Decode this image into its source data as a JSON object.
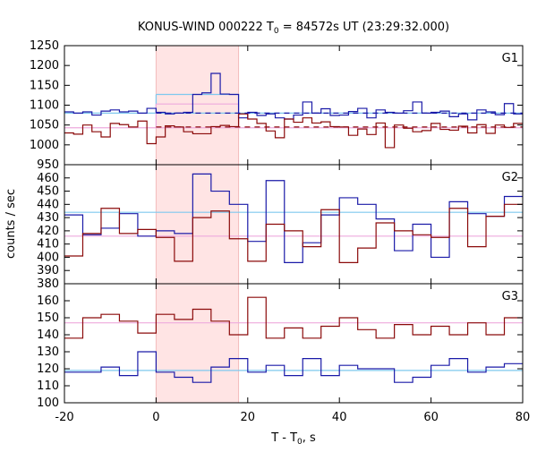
{
  "title": {
    "prefix": "KONUS-WIND 000222 T",
    "subscript": "0",
    "suffix": " = 84572s UT (23:29:32.000)"
  },
  "axes": {
    "ylabel": "counts / sec",
    "xlabel_prefix": "T - T",
    "xlabel_subscript": "0",
    "xlabel_suffix": ", s"
  },
  "colors": {
    "blue": "#1a1aa8",
    "red": "#8b0a0a",
    "lightblue": "#7ec8ee",
    "pink": "#eeaadd",
    "shade": "#ffe4e4",
    "dash_blue": "#1a1aa8",
    "dash_red": "#8b0a0a",
    "box_blue": "#7ec8ee",
    "box_pink": "#eeaadd"
  },
  "chart_data": [
    {
      "type": "line",
      "panel": "G1",
      "xlim": [
        -20,
        80
      ],
      "ylim": [
        950,
        1250
      ],
      "xticks": [
        -20,
        0,
        20,
        40,
        60,
        80
      ],
      "yticks": [
        1000,
        1050,
        1100,
        1150,
        1200,
        1250
      ],
      "ytick_labels": [
        "1000",
        "1050",
        "1100",
        "1150",
        "1200",
        "1250"
      ],
      "shaded_interval": [
        0,
        18
      ],
      "bin_edges_start": -20,
      "bin_width": 2,
      "series": [
        {
          "color_key": "blue",
          "values": [
            1083,
            1080,
            1083,
            1075,
            1085,
            1088,
            1083,
            1085,
            1080,
            1092,
            1082,
            1078,
            1080,
            1082,
            1127,
            1131,
            1180,
            1128,
            1127,
            1068,
            1082,
            1074,
            1078,
            1068,
            1065,
            1075,
            1108,
            1080,
            1091,
            1074,
            1075,
            1084,
            1092,
            1068,
            1088,
            1082,
            1080,
            1086,
            1108,
            1080,
            1082,
            1085,
            1071,
            1078,
            1063,
            1088,
            1083,
            1076,
            1104,
            1078
          ]
        },
        {
          "color_key": "red",
          "values": [
            1030,
            1027,
            1050,
            1033,
            1020,
            1054,
            1051,
            1045,
            1060,
            1003,
            1020,
            1048,
            1045,
            1033,
            1028,
            1028,
            1046,
            1049,
            1046,
            1078,
            1065,
            1054,
            1035,
            1018,
            1065,
            1057,
            1068,
            1055,
            1058,
            1046,
            1045,
            1024,
            1040,
            1026,
            1055,
            993,
            1050,
            1042,
            1033,
            1036,
            1054,
            1039,
            1037,
            1047,
            1030,
            1051,
            1029,
            1050,
            1044,
            1054
          ]
        }
      ],
      "background_levels": [
        {
          "color_key": "lightblue",
          "value": 1080,
          "range": [
            -20,
            80
          ]
        },
        {
          "color_key": "pink",
          "value": 1043,
          "range": [
            -20,
            80
          ]
        }
      ],
      "interval_means": [
        {
          "color_key": "box_blue",
          "value": 1127,
          "range": [
            0,
            18
          ]
        },
        {
          "color_key": "box_pink",
          "value": 1103,
          "range": [
            0,
            18
          ]
        }
      ],
      "dashed_levels": [
        {
          "color_key": "dash_blue",
          "value": 1080,
          "range": [
            0,
            80
          ]
        },
        {
          "color_key": "dash_red",
          "value": 1045,
          "range": [
            0,
            80
          ]
        }
      ]
    },
    {
      "type": "line",
      "panel": "G2",
      "xlim": [
        -20,
        80
      ],
      "ylim": [
        380,
        470
      ],
      "xticks": [
        -20,
        0,
        20,
        40,
        60,
        80
      ],
      "yticks": [
        390,
        400,
        410,
        420,
        430,
        440,
        450,
        460
      ],
      "ytick_labels": [
        "390",
        "400",
        "410",
        "420",
        "430",
        "440",
        "450",
        "460"
      ],
      "shaded_interval": [
        0,
        18
      ],
      "bin_edges_start": -20,
      "bin_width": 4,
      "series": [
        {
          "color_key": "blue",
          "values": [
            432,
            417,
            422,
            433,
            416,
            420,
            418,
            463,
            450,
            440,
            412,
            458,
            396,
            411,
            432,
            445,
            440,
            429,
            405,
            425,
            400,
            442,
            433,
            431,
            446
          ]
        },
        {
          "color_key": "red",
          "values": [
            401,
            418,
            437,
            418,
            421,
            415,
            397,
            430,
            435,
            414,
            397,
            425,
            420,
            408,
            436,
            396,
            407,
            426,
            420,
            417,
            415,
            437,
            408,
            431,
            440
          ]
        }
      ],
      "background_levels": [
        {
          "color_key": "lightblue",
          "value": 434,
          "range": [
            -20,
            80
          ]
        },
        {
          "color_key": "pink",
          "value": 416,
          "range": [
            -20,
            80
          ]
        }
      ]
    },
    {
      "type": "line",
      "panel": "G3",
      "xlim": [
        -20,
        80
      ],
      "ylim": [
        100,
        170
      ],
      "xticks": [
        -20,
        0,
        20,
        40,
        60,
        80
      ],
      "yticks": [
        100,
        110,
        120,
        130,
        140,
        150,
        160
      ],
      "ytick_labels": [
        "100",
        "110",
        "120",
        "130",
        "140",
        "150",
        "160"
      ],
      "shaded_interval": [
        0,
        18
      ],
      "bin_edges_start": -20,
      "bin_width": 4,
      "series": [
        {
          "color_key": "blue",
          "values": [
            118,
            118,
            121,
            116,
            130,
            118,
            115,
            112,
            121,
            126,
            118,
            122,
            116,
            126,
            116,
            122,
            120,
            120,
            112,
            115,
            122,
            126,
            118,
            121,
            123
          ]
        },
        {
          "color_key": "red",
          "values": [
            138,
            150,
            152,
            148,
            141,
            152,
            149,
            155,
            148,
            140,
            162,
            138,
            144,
            138,
            145,
            150,
            143,
            138,
            146,
            140,
            145,
            140,
            147,
            140,
            150
          ]
        }
      ],
      "background_levels": [
        {
          "color_key": "lightblue",
          "value": 119,
          "range": [
            -20,
            80
          ]
        },
        {
          "color_key": "pink",
          "value": 147,
          "range": [
            -20,
            80
          ]
        }
      ]
    }
  ]
}
